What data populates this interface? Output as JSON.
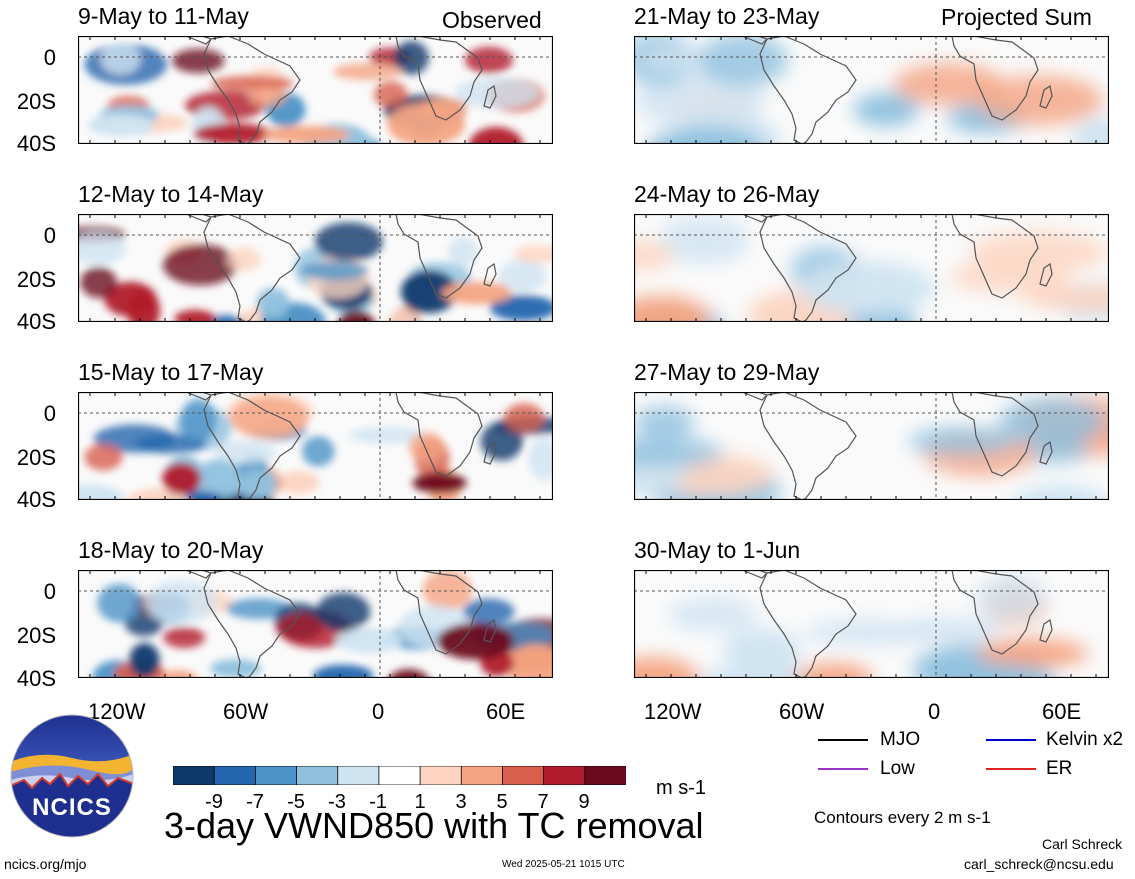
{
  "corner_labels": {
    "left": "Observed",
    "right": "Projected Sum"
  },
  "panels": [
    {
      "title": "9-May to 11-May",
      "type": "observed"
    },
    {
      "title": "12-May to 14-May",
      "type": "observed"
    },
    {
      "title": "15-May to 17-May",
      "type": "observed"
    },
    {
      "title": "18-May to 20-May",
      "type": "observed"
    },
    {
      "title": "21-May to 23-May",
      "type": "projected"
    },
    {
      "title": "24-May to 26-May",
      "type": "projected"
    },
    {
      "title": "27-May to 29-May",
      "type": "projected"
    },
    {
      "title": "30-May to 1-Jun",
      "type": "projected"
    }
  ],
  "y_axis_labels": [
    "0",
    "20S",
    "40S"
  ],
  "x_axis_labels": [
    "120W",
    "60W",
    "0",
    "60E"
  ],
  "colorbar": {
    "tick_labels": [
      "-9",
      "-7",
      "-5",
      "-3",
      "-1",
      "1",
      "3",
      "5",
      "7",
      "9"
    ],
    "colors": [
      "#0d3a6b",
      "#2466ad",
      "#4c92c6",
      "#8fc1de",
      "#cfe4f1",
      "#ffffff",
      "#fcd4c1",
      "#f4a482",
      "#d75f4c",
      "#b11b2c",
      "#6b0a1f"
    ],
    "units": "m s-1"
  },
  "main_title": "3-day VWND850 with TC removal",
  "legend": {
    "items": [
      {
        "label": "MJO",
        "color": "#000000"
      },
      {
        "label": "Kelvin x2",
        "color": "#0000cc"
      },
      {
        "label": "Low",
        "color": "#9933cc"
      },
      {
        "label": "ER",
        "color": "#dd2222"
      }
    ],
    "contour_note": "Contours every 2 m s-1"
  },
  "logo": {
    "text": "NCICS"
  },
  "footer": {
    "url": "ncics.org/mjo",
    "timestamp": "Wed 2025-05-21 1015 UTC",
    "author": "Carl Schreck",
    "email": "carl_schreck@ncsu.edu"
  }
}
